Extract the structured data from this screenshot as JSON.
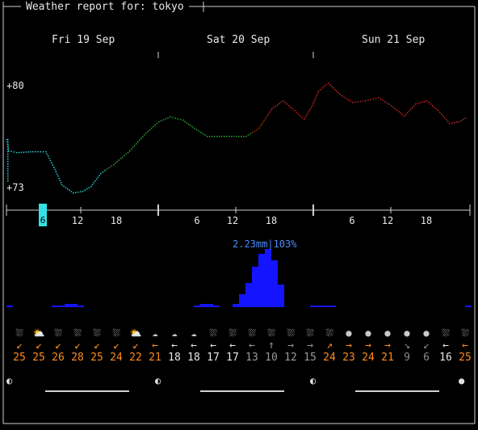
{
  "header": {
    "title": "Weather report for: tokyo"
  },
  "days": [
    "Fri 19 Sep",
    "Sat 20 Sep",
    "Sun 21 Sep"
  ],
  "temp_axis": {
    "top_label": "+80",
    "bottom_label": "+73"
  },
  "time_ticks": [
    "6",
    "12",
    "18",
    "6",
    "12",
    "18",
    "6",
    "12",
    "18"
  ],
  "now_marker": "6",
  "precip": {
    "label": "2.23mm|103%"
  },
  "forecast": {
    "symbols": [
      "⛆",
      "⛅",
      "⛆",
      "⛆",
      "⛆",
      "⛆",
      "⛅",
      "☁",
      "☁",
      "☁",
      "⛆",
      "⛆",
      "⛆",
      "⛆",
      "⛆",
      "⛆",
      "⛆",
      "●",
      "●",
      "●",
      "●",
      "●",
      "⛆",
      "⛆"
    ],
    "arrows": [
      "↙",
      "↙",
      "↙",
      "↙",
      "↙",
      "↙",
      "↙",
      "←",
      "←",
      "←",
      "←",
      "←",
      "←",
      "↑",
      "→",
      "→",
      "↗",
      "→",
      "→",
      "→",
      "↘",
      "↙",
      "←",
      "←"
    ],
    "speeds": [
      "25",
      "25",
      "26",
      "28",
      "25",
      "24",
      "22",
      "21",
      "18",
      "18",
      "17",
      "17",
      "13",
      "10",
      "12",
      "15",
      "24",
      "23",
      "24",
      "21",
      "9",
      "6",
      "16",
      "25"
    ],
    "colors": [
      "#ff8c1a",
      "#ff8c1a",
      "#ff8c1a",
      "#ff8c1a",
      "#ff8c1a",
      "#ff8c1a",
      "#ff8c1a",
      "#ff8c1a",
      "#e8e8e8",
      "#e8e8e8",
      "#e8e8e8",
      "#e8e8e8",
      "#9a9a9a",
      "#9a9a9a",
      "#9a9a9a",
      "#9a9a9a",
      "#ff8c1a",
      "#ff8c1a",
      "#ff8c1a",
      "#ff8c1a",
      "#8a8a8a",
      "#8a8a8a",
      "#e8e8e8",
      "#ff8c1a"
    ]
  },
  "moon_phases": [
    "◐",
    "◐",
    "◐",
    "●"
  ]
}
